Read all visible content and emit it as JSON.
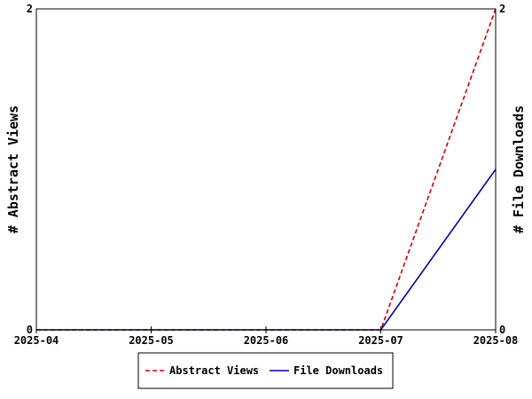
{
  "chart_data": {
    "type": "line",
    "x": [
      "2025-04",
      "2025-05",
      "2025-06",
      "2025-07",
      "2025-08"
    ],
    "x_tick_labels": [
      "2025-04",
      "2025-05",
      "2025-06",
      "2025-07",
      "2025-08"
    ],
    "y_left": {
      "label": "# Abstract Views",
      "ylim": [
        0,
        2
      ],
      "tick_labels": [
        "0",
        "2"
      ]
    },
    "y_right": {
      "label": "# File Downloads",
      "ylim": [
        0,
        2
      ],
      "tick_labels": [
        "0",
        "2"
      ]
    },
    "series": [
      {
        "name": "Abstract Views",
        "axis": "left",
        "values": [
          0,
          0,
          0,
          0,
          2
        ],
        "color": "#cc0000",
        "style": "dashed"
      },
      {
        "name": "File Downloads",
        "axis": "right",
        "values": [
          0,
          0,
          0,
          0,
          1
        ],
        "color": "#000099",
        "style": "solid"
      }
    ],
    "grid": false,
    "legend_position": "bottom"
  }
}
